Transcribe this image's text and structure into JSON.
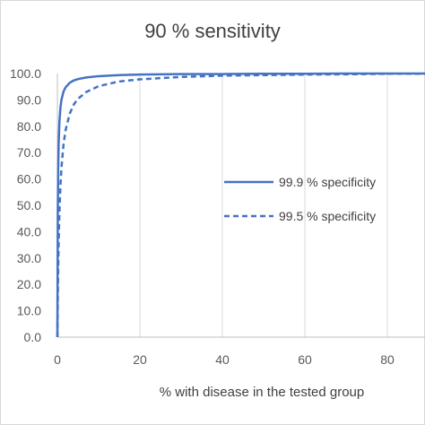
{
  "chart_data": {
    "type": "line",
    "title": "90 % sensitivity",
    "xlabel": "% with disease in the tested group",
    "ylabel": "",
    "xlim": [
      0,
      90
    ],
    "ylim": [
      0,
      100
    ],
    "x_ticks": [
      "0",
      "20",
      "40",
      "60",
      "80"
    ],
    "y_ticks": [
      "0.0",
      "10.0",
      "20.0",
      "30.0",
      "40.0",
      "50.0",
      "60.0",
      "70.0",
      "80.0",
      "90.0",
      "100.0"
    ],
    "grid": "vertical",
    "legend_position": "right",
    "series": [
      {
        "name": "99.9 % specificity",
        "style": "solid",
        "color": "#4472c4",
        "x": [
          0,
          0.1,
          0.2,
          0.3,
          0.5,
          0.75,
          1,
          1.5,
          2,
          3,
          4,
          5,
          7,
          10,
          15,
          20,
          30,
          40,
          50,
          60,
          70,
          80,
          90
        ],
        "y": [
          0,
          47.4,
          64.3,
          73.0,
          81.9,
          87.2,
          90.1,
          93.2,
          94.8,
          96.5,
          97.4,
          97.9,
          98.5,
          99.0,
          99.4,
          99.6,
          99.8,
          99.8,
          99.9,
          99.9,
          100,
          100,
          100
        ]
      },
      {
        "name": "99.5 % specificity",
        "style": "dashed",
        "color": "#4472c4",
        "x": [
          0,
          0.1,
          0.2,
          0.3,
          0.5,
          0.75,
          1,
          1.5,
          2,
          3,
          4,
          5,
          7,
          10,
          15,
          20,
          30,
          40,
          50,
          60,
          70,
          80,
          90
        ],
        "y": [
          0,
          15.3,
          26.5,
          35.2,
          47.6,
          57.7,
          64.5,
          73.3,
          78.6,
          84.8,
          88.3,
          90.4,
          93.0,
          95.2,
          97.0,
          97.8,
          98.7,
          99.2,
          99.4,
          99.6,
          99.7,
          99.9,
          99.9
        ]
      }
    ]
  }
}
